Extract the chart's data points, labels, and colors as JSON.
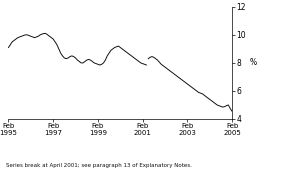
{
  "title": "",
  "ylabel": "%",
  "ylim": [
    4,
    12
  ],
  "yticks": [
    4,
    6,
    8,
    10,
    12
  ],
  "xlim": [
    0,
    120
  ],
  "xtick_positions": [
    0,
    24,
    48,
    72,
    96,
    120
  ],
  "xtick_labels": [
    "Feb\n1995",
    "Feb\n1997",
    "Feb\n1999",
    "Feb\n2001",
    "Feb\n2003",
    "Feb\n2005"
  ],
  "line_color": "#111111",
  "line_width": 0.7,
  "footnote": "Series break at April 2001; see paragraph 13 of Explanatory Notes.",
  "series1_x": [
    0,
    1,
    2,
    3,
    4,
    5,
    6,
    7,
    8,
    9,
    10,
    11,
    12,
    13,
    14,
    15,
    16,
    17,
    18,
    19,
    20,
    21,
    22,
    23,
    24,
    25,
    26,
    27,
    28,
    29,
    30,
    31,
    32,
    33,
    34,
    35,
    36,
    37,
    38,
    39,
    40,
    41,
    42,
    43,
    44,
    45,
    46,
    47,
    48,
    49,
    50,
    51,
    52,
    53,
    54,
    55,
    56,
    57,
    58,
    59,
    60,
    61,
    62,
    63,
    64,
    65,
    66,
    67,
    68,
    69,
    70,
    71,
    72,
    73,
    74
  ],
  "series1_y": [
    9.1,
    9.3,
    9.5,
    9.6,
    9.7,
    9.8,
    9.85,
    9.9,
    9.95,
    10.0,
    10.0,
    9.95,
    9.9,
    9.85,
    9.8,
    9.85,
    9.9,
    10.0,
    10.05,
    10.1,
    10.1,
    10.0,
    9.9,
    9.8,
    9.7,
    9.5,
    9.3,
    9.0,
    8.7,
    8.5,
    8.35,
    8.3,
    8.35,
    8.45,
    8.5,
    8.45,
    8.35,
    8.2,
    8.1,
    8.0,
    8.0,
    8.1,
    8.2,
    8.25,
    8.2,
    8.1,
    8.0,
    7.95,
    7.9,
    7.85,
    7.9,
    8.0,
    8.2,
    8.5,
    8.7,
    8.9,
    9.0,
    9.1,
    9.15,
    9.2,
    9.1,
    9.0,
    8.9,
    8.8,
    8.7,
    8.6,
    8.5,
    8.4,
    8.3,
    8.2,
    8.1,
    8.0,
    7.95,
    7.9,
    7.85
  ],
  "series2_x": [
    75,
    76,
    77,
    78,
    79,
    80,
    81,
    82,
    83,
    84,
    85,
    86,
    87,
    88,
    89,
    90,
    91,
    92,
    93,
    94,
    95,
    96,
    97,
    98,
    99,
    100,
    101,
    102,
    103,
    104,
    105,
    106,
    107,
    108,
    109,
    110,
    111,
    112,
    113,
    114,
    115,
    116,
    117,
    118,
    119,
    120
  ],
  "series2_y": [
    8.3,
    8.4,
    8.45,
    8.4,
    8.3,
    8.2,
    8.05,
    7.9,
    7.8,
    7.7,
    7.6,
    7.5,
    7.4,
    7.3,
    7.2,
    7.1,
    7.0,
    6.9,
    6.8,
    6.7,
    6.6,
    6.5,
    6.4,
    6.3,
    6.2,
    6.1,
    6.0,
    5.9,
    5.85,
    5.8,
    5.7,
    5.6,
    5.5,
    5.4,
    5.3,
    5.2,
    5.1,
    5.0,
    4.95,
    4.9,
    4.85,
    4.88,
    4.95,
    5.0,
    4.75,
    4.55
  ]
}
